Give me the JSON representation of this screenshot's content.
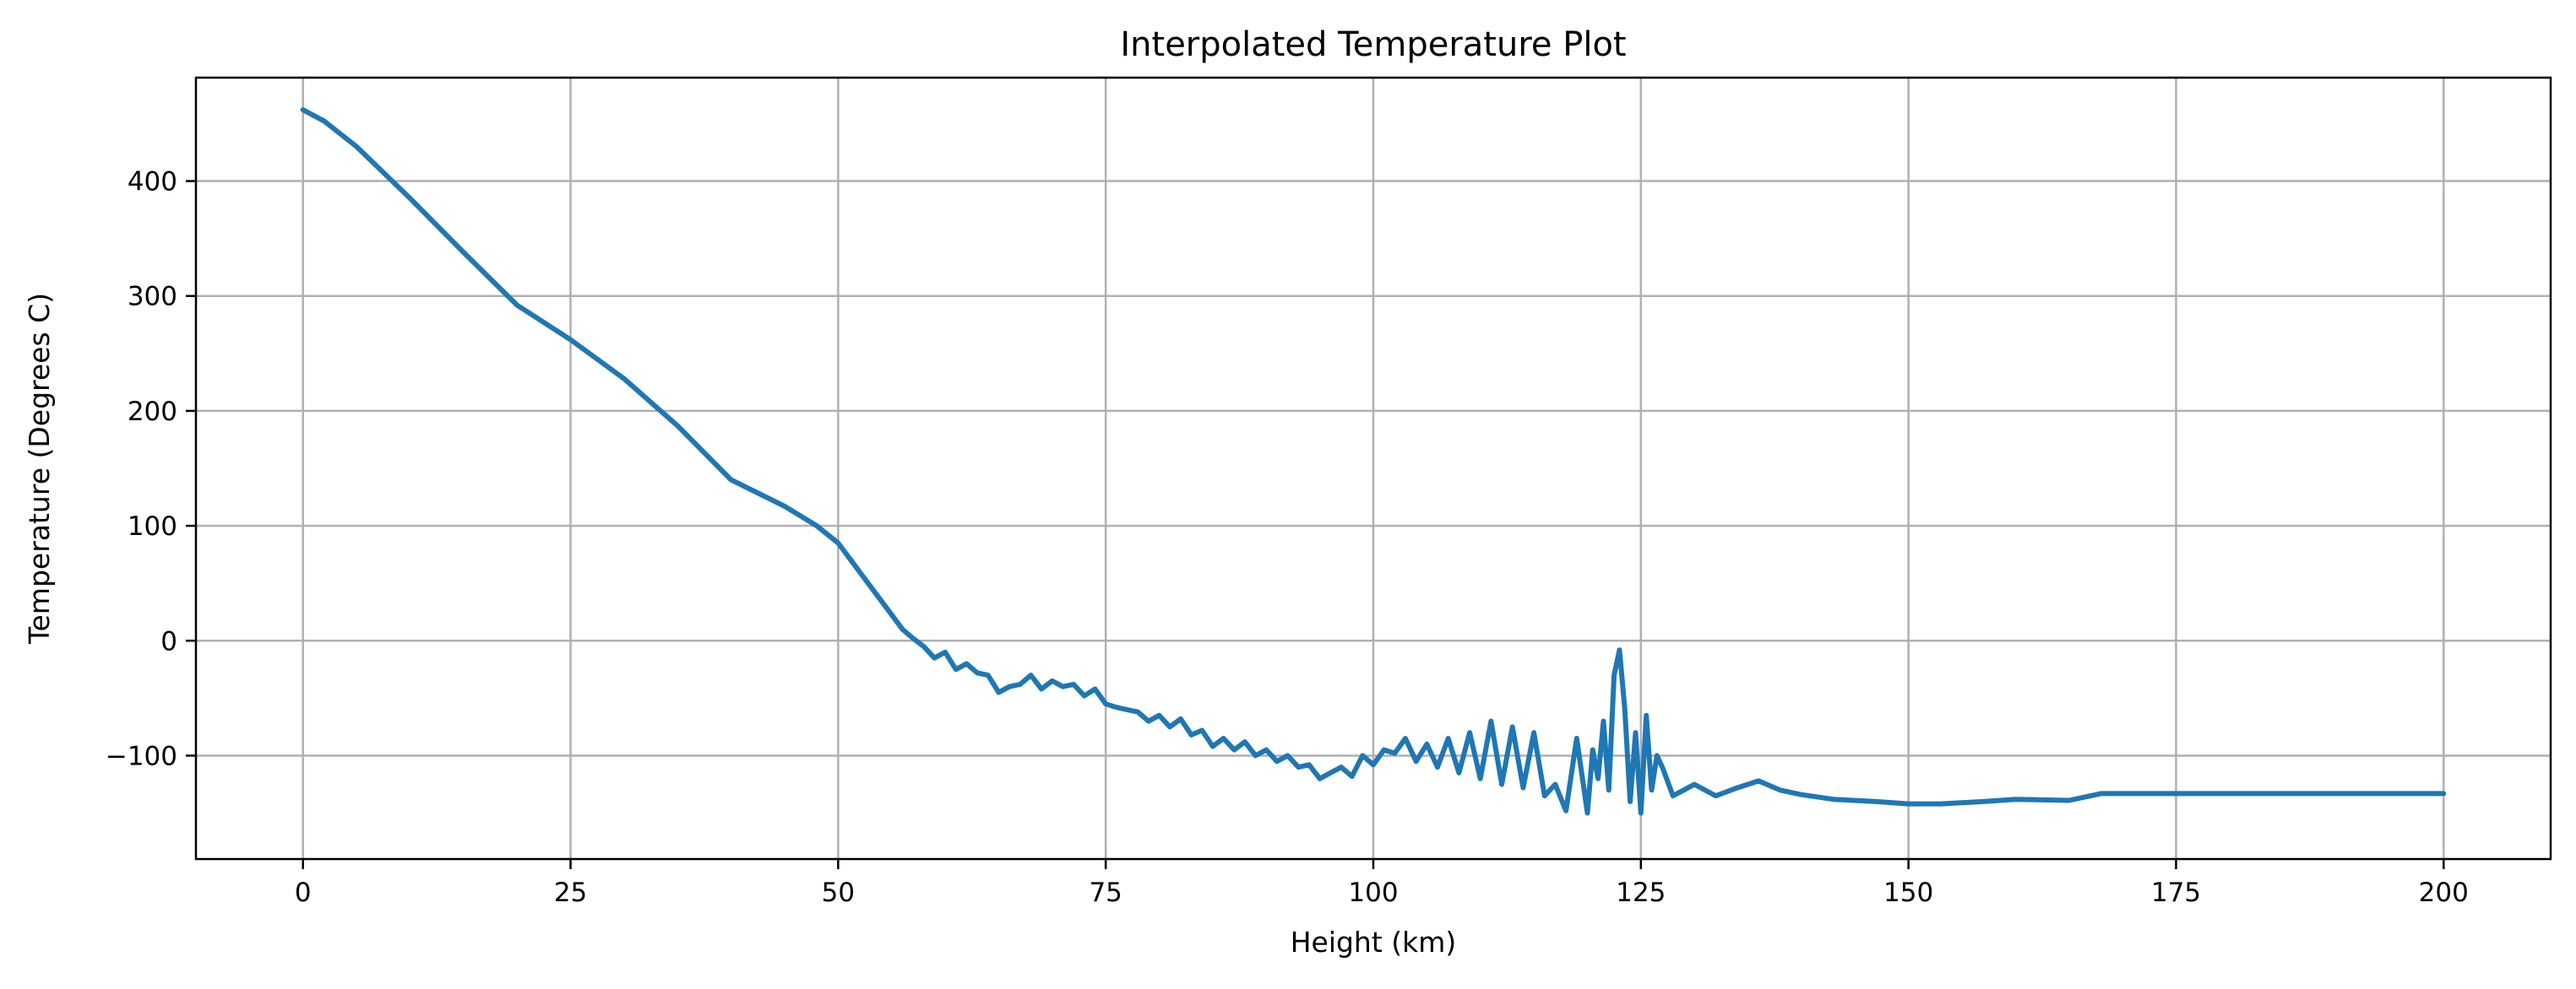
{
  "chart_data": {
    "type": "line",
    "title": "Interpolated Temperature Plot",
    "xlabel": "Height (km)",
    "ylabel": "Temperature (Degrees C)",
    "xlim": [
      -10,
      210
    ],
    "ylim": [
      -190,
      490
    ],
    "xticks": [
      0,
      25,
      50,
      75,
      100,
      125,
      150,
      175,
      200
    ],
    "yticks": [
      -100,
      0,
      100,
      200,
      300,
      400
    ],
    "xtick_labels": [
      "0",
      "25",
      "50",
      "75",
      "100",
      "125",
      "150",
      "175",
      "200"
    ],
    "ytick_labels": [
      "−100",
      "0",
      "100",
      "200",
      "300",
      "400"
    ],
    "grid": true,
    "series": [
      {
        "color": "#1f77b4",
        "x": [
          0,
          2,
          5,
          10,
          15,
          20,
          25,
          30,
          35,
          40,
          45,
          48,
          50,
          52,
          54,
          56,
          57,
          58,
          59,
          60,
          61,
          62,
          63,
          64,
          65,
          66,
          67,
          68,
          69,
          70,
          71,
          72,
          73,
          74,
          75,
          76,
          77,
          78,
          79,
          80,
          81,
          82,
          83,
          84,
          85,
          86,
          87,
          88,
          89,
          90,
          91,
          92,
          93,
          94,
          95,
          96,
          97,
          98,
          99,
          100,
          101,
          102,
          103,
          104,
          105,
          106,
          107,
          108,
          109,
          110,
          111,
          112,
          113,
          114,
          115,
          116,
          117,
          118,
          119,
          120,
          120.5,
          121,
          121.5,
          122,
          122.5,
          123,
          123.5,
          124,
          124.5,
          125,
          125.5,
          126,
          126.5,
          127,
          128,
          129,
          130,
          132,
          134,
          136,
          138,
          140,
          143,
          147,
          150,
          153,
          157,
          160,
          165,
          168,
          172,
          180,
          190,
          200
        ],
        "y": [
          462,
          452,
          430,
          385,
          338,
          292,
          262,
          228,
          187,
          140,
          117,
          100,
          85,
          60,
          35,
          10,
          2,
          -5,
          -15,
          -10,
          -25,
          -20,
          -28,
          -30,
          -45,
          -40,
          -38,
          -30,
          -42,
          -35,
          -40,
          -38,
          -48,
          -42,
          -55,
          -58,
          -60,
          -62,
          -70,
          -65,
          -75,
          -68,
          -82,
          -78,
          -92,
          -85,
          -95,
          -88,
          -100,
          -95,
          -105,
          -100,
          -110,
          -108,
          -120,
          -115,
          -110,
          -118,
          -100,
          -108,
          -95,
          -98,
          -85,
          -105,
          -90,
          -110,
          -85,
          -115,
          -80,
          -120,
          -70,
          -125,
          -75,
          -128,
          -80,
          -135,
          -125,
          -148,
          -85,
          -150,
          -95,
          -120,
          -70,
          -130,
          -30,
          -8,
          -60,
          -140,
          -80,
          -150,
          -65,
          -130,
          -100,
          -110,
          -135,
          -130,
          -125,
          -135,
          -128,
          -122,
          -130,
          -134,
          -138,
          -140,
          -142,
          -142,
          -140,
          -138,
          -139,
          -133,
          -133,
          -133,
          -133,
          -133
        ]
      }
    ]
  }
}
